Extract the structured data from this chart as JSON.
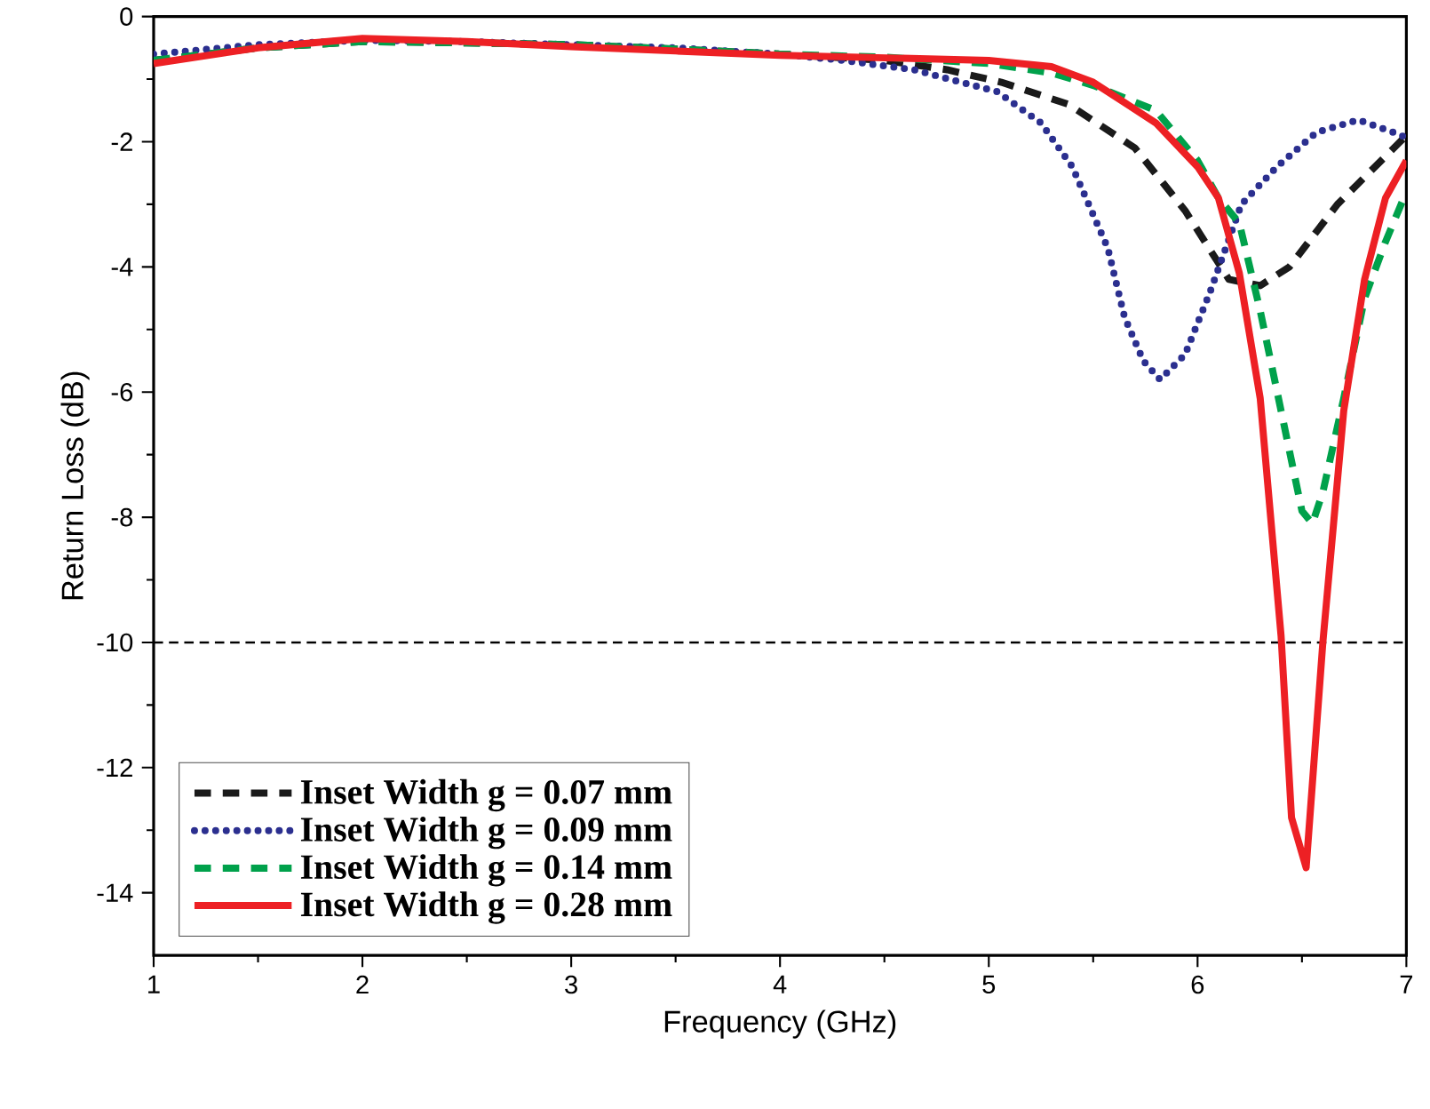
{
  "chart_data": {
    "type": "line",
    "xlabel": "Frequency (GHz)",
    "ylabel": "Return Loss (dB)",
    "xlim": [
      1,
      7
    ],
    "ylim": [
      -15,
      0
    ],
    "xticks": [
      1,
      2,
      3,
      4,
      5,
      6,
      7
    ],
    "yticks": [
      -14,
      -12,
      -10,
      -8,
      -6,
      -4,
      -2,
      0
    ],
    "grid": false,
    "legend": "bottom left",
    "marker": "none",
    "ref_lines": [
      {
        "axis": "y",
        "value": -10,
        "color": "#000000",
        "line_style": "dashed"
      }
    ],
    "series": [
      {
        "name": "Inset Width g = 0.07 mm",
        "color": "#1a1a1a",
        "line_style": "dashed",
        "x": [
          1,
          1.5,
          2,
          2.5,
          3,
          3.5,
          4,
          4.5,
          4.8,
          5.06,
          5.38,
          5.7,
          5.94,
          6.15,
          6.3,
          6.44,
          6.67,
          6.97,
          7
        ],
        "values": [
          -0.7,
          -0.5,
          -0.4,
          -0.42,
          -0.45,
          -0.52,
          -0.6,
          -0.7,
          -0.85,
          -1.05,
          -1.4,
          -2.1,
          -3.1,
          -4.2,
          -4.3,
          -4.0,
          -3.0,
          -2.0,
          -1.9
        ]
      },
      {
        "name": "Inset Width g = 0.09 mm",
        "color": "#2b2f8f",
        "line_style": "dotted",
        "x": [
          1,
          1.5,
          2,
          2.5,
          3,
          3.5,
          4,
          4.3,
          4.64,
          5.04,
          5.25,
          5.4,
          5.57,
          5.65,
          5.74,
          5.82,
          5.94,
          6.06,
          6.21,
          6.38,
          6.57,
          6.77,
          6.98,
          7
        ],
        "values": [
          -0.6,
          -0.45,
          -0.38,
          -0.4,
          -0.45,
          -0.5,
          -0.6,
          -0.7,
          -0.85,
          -1.2,
          -1.7,
          -2.4,
          -3.7,
          -4.8,
          -5.5,
          -5.8,
          -5.4,
          -4.4,
          -3.0,
          -2.4,
          -1.85,
          -1.65,
          -1.9,
          -2.0
        ]
      },
      {
        "name": "Inset Width g = 0.14 mm",
        "color": "#00a14b",
        "line_style": "dashed",
        "x": [
          1,
          1.5,
          2,
          2.5,
          3,
          3.5,
          4,
          4.5,
          5,
          5.3,
          5.5,
          5.8,
          6.0,
          6.1,
          6.2,
          6.3,
          6.4,
          6.5,
          6.55,
          6.6,
          6.7,
          6.8,
          6.9,
          7
        ],
        "values": [
          -0.7,
          -0.5,
          -0.4,
          -0.42,
          -0.45,
          -0.52,
          -0.6,
          -0.65,
          -0.75,
          -0.9,
          -1.1,
          -1.5,
          -2.3,
          -2.9,
          -3.3,
          -4.7,
          -6.3,
          -7.9,
          -8.1,
          -7.6,
          -6.1,
          -4.5,
          -3.6,
          -2.8
        ]
      },
      {
        "name": "Inset Width g = 0.28 mm",
        "color": "#ed2024",
        "line_style": "solid",
        "x": [
          1,
          1.5,
          2,
          2.5,
          3,
          3.5,
          4,
          4.5,
          5,
          5.3,
          5.5,
          5.8,
          6.0,
          6.1,
          6.2,
          6.3,
          6.4,
          6.45,
          6.52,
          6.6,
          6.7,
          6.8,
          6.9,
          7
        ],
        "values": [
          -0.75,
          -0.5,
          -0.35,
          -0.4,
          -0.48,
          -0.55,
          -0.62,
          -0.66,
          -0.7,
          -0.8,
          -1.05,
          -1.7,
          -2.4,
          -2.9,
          -4.1,
          -6.1,
          -9.9,
          -12.8,
          -13.6,
          -10.0,
          -6.3,
          -4.2,
          -2.9,
          -2.3
        ]
      }
    ]
  }
}
